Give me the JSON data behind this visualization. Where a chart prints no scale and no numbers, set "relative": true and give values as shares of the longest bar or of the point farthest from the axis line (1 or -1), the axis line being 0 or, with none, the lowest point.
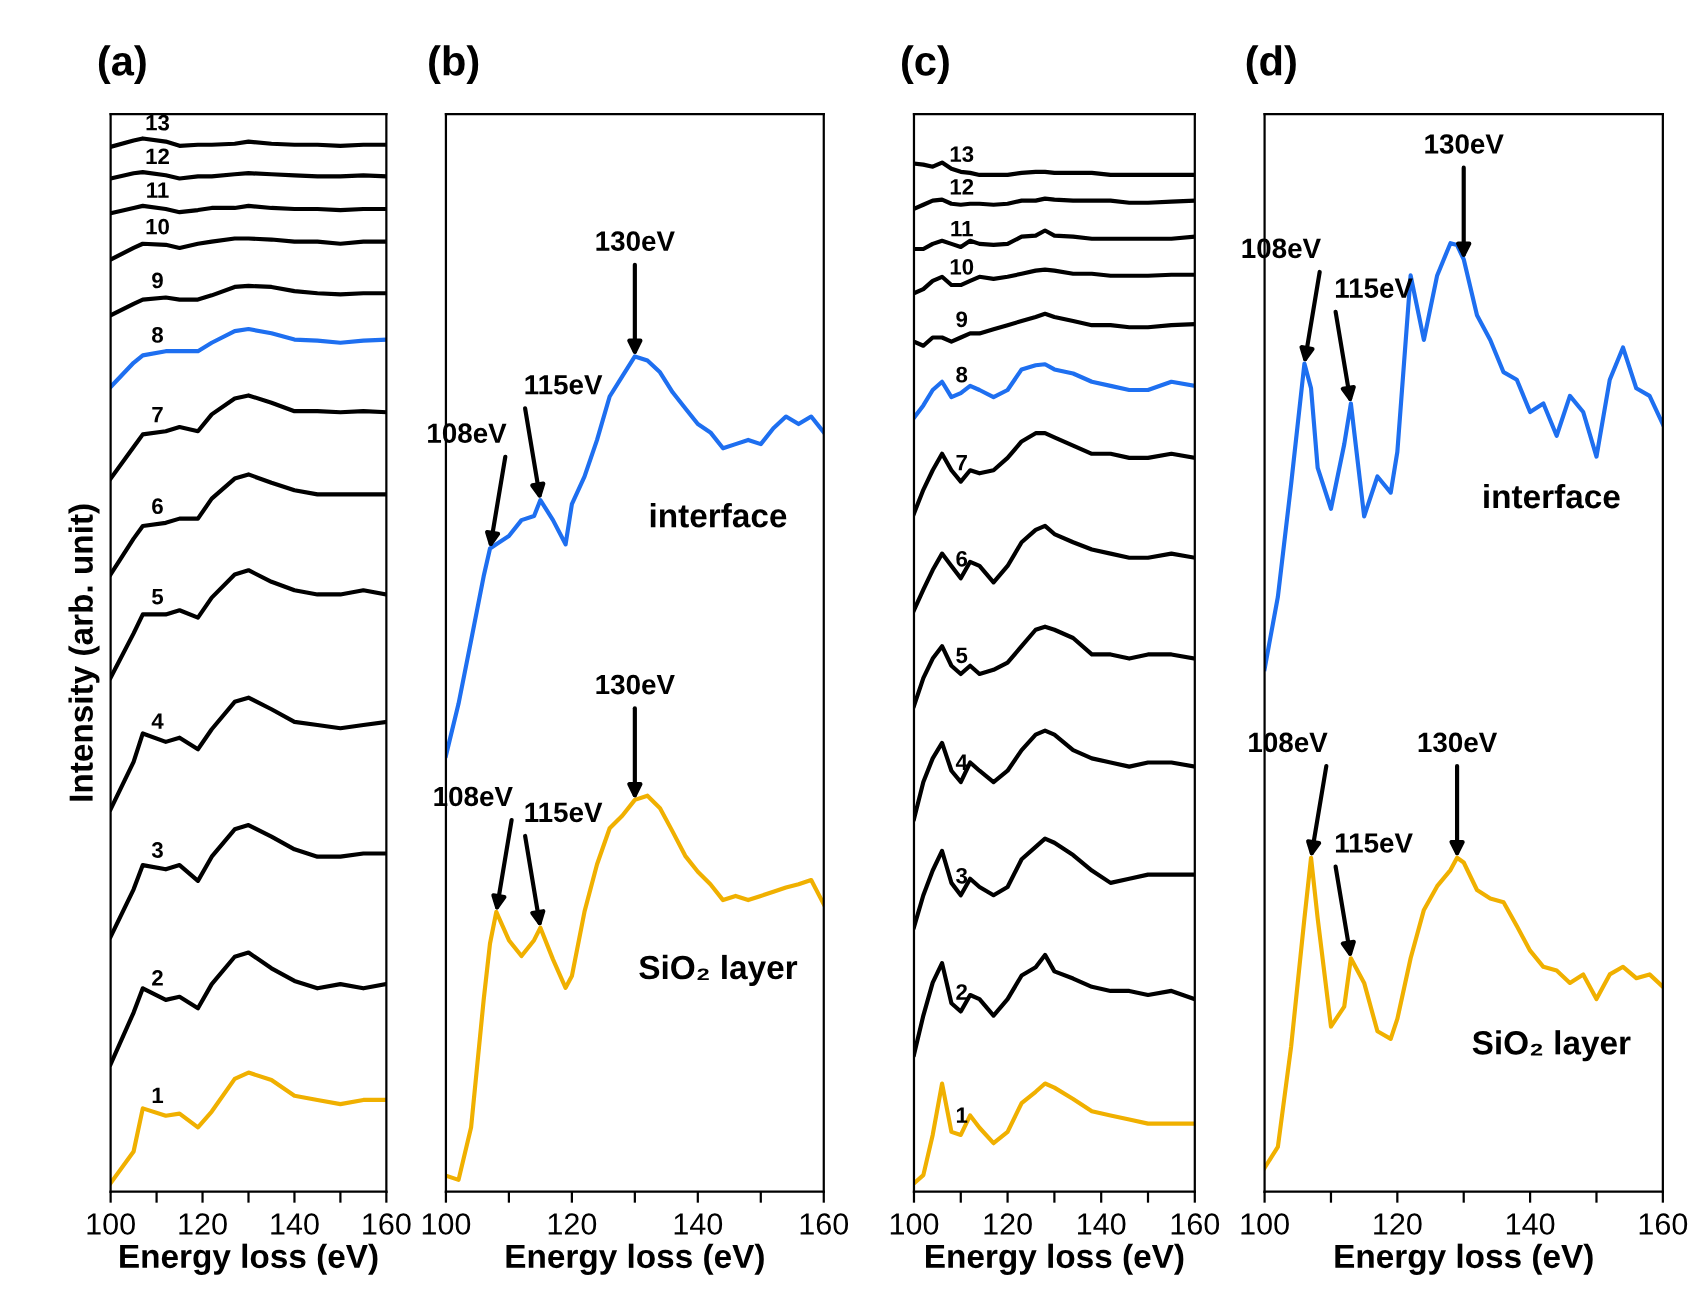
{
  "chart_data": [
    {
      "type": "line",
      "title": "(a)",
      "xlabel": "Energy loss (eV)",
      "ylabel": "Intensity (arb. unit)",
      "relative": true,
      "grid": false,
      "legend": false,
      "x": [
        100,
        105,
        107,
        112,
        115,
        119,
        122,
        127,
        130,
        135,
        140,
        145,
        150,
        155,
        160
      ],
      "xlim": [
        100,
        160
      ],
      "xticks": [
        100,
        {
          "value": 110,
          "label": null
        },
        120,
        {
          "value": 130,
          "label": null
        },
        140,
        {
          "value": 150,
          "label": null
        },
        160
      ],
      "series": [
        {
          "name": "1",
          "color": "#f0b000",
          "values": [
            0.008,
            0.038,
            0.079,
            0.072,
            0.074,
            0.061,
            0.076,
            0.107,
            0.113,
            0.106,
            0.091,
            0.087,
            0.083,
            0.087,
            0.087
          ]
        },
        {
          "name": "2",
          "color": "#000000",
          "values": [
            0.121,
            0.17,
            0.193,
            0.182,
            0.185,
            0.174,
            0.197,
            0.223,
            0.227,
            0.212,
            0.2,
            0.193,
            0.197,
            0.193,
            0.197
          ]
        },
        {
          "name": "3",
          "color": "#000000",
          "values": [
            0.242,
            0.287,
            0.31,
            0.306,
            0.31,
            0.295,
            0.318,
            0.344,
            0.348,
            0.337,
            0.325,
            0.318,
            0.318,
            0.321,
            0.321
          ]
        },
        {
          "name": "4",
          "color": "#000000",
          "values": [
            0.363,
            0.408,
            0.435,
            0.427,
            0.431,
            0.42,
            0.439,
            0.465,
            0.469,
            0.458,
            0.446,
            0.443,
            0.44,
            0.443,
            0.446
          ]
        },
        {
          "name": "5",
          "color": "#000000",
          "values": [
            0.488,
            0.53,
            0.548,
            0.548,
            0.552,
            0.545,
            0.564,
            0.586,
            0.59,
            0.579,
            0.571,
            0.567,
            0.567,
            0.571,
            0.567
          ]
        },
        {
          "name": "6",
          "color": "#000000",
          "values": [
            0.586,
            0.62,
            0.632,
            0.635,
            0.639,
            0.639,
            0.658,
            0.677,
            0.681,
            0.673,
            0.666,
            0.662,
            0.662,
            0.662,
            0.662
          ]
        },
        {
          "name": "7",
          "color": "#000000",
          "values": [
            0.677,
            0.707,
            0.719,
            0.722,
            0.726,
            0.722,
            0.738,
            0.753,
            0.756,
            0.749,
            0.741,
            0.741,
            0.74,
            0.741,
            0.74
          ]
        },
        {
          "name": "8",
          "color": "#1e6ff0",
          "values": [
            0.764,
            0.787,
            0.794,
            0.798,
            0.798,
            0.798,
            0.806,
            0.817,
            0.819,
            0.815,
            0.809,
            0.808,
            0.806,
            0.808,
            0.809
          ]
        },
        {
          "name": "9",
          "color": "#000000",
          "values": [
            0.832,
            0.843,
            0.847,
            0.849,
            0.847,
            0.847,
            0.851,
            0.859,
            0.86,
            0.859,
            0.855,
            0.853,
            0.852,
            0.853,
            0.853
          ]
        },
        {
          "name": "10",
          "color": "#000000",
          "values": [
            0.885,
            0.896,
            0.9,
            0.899,
            0.896,
            0.9,
            0.902,
            0.905,
            0.905,
            0.904,
            0.902,
            0.902,
            0.9,
            0.902,
            0.902
          ]
        },
        {
          "name": "11",
          "color": "#000000",
          "values": [
            0.929,
            0.934,
            0.936,
            0.933,
            0.93,
            0.932,
            0.934,
            0.934,
            0.936,
            0.934,
            0.933,
            0.933,
            0.932,
            0.933,
            0.933
          ]
        },
        {
          "name": "12",
          "color": "#000000",
          "values": [
            0.962,
            0.967,
            0.968,
            0.965,
            0.962,
            0.964,
            0.964,
            0.966,
            0.967,
            0.966,
            0.965,
            0.964,
            0.964,
            0.965,
            0.964
          ]
        },
        {
          "name": "13",
          "color": "#000000",
          "values": [
            0.992,
            0.998,
            1.0,
            0.997,
            0.993,
            0.994,
            0.994,
            0.995,
            0.997,
            0.995,
            0.994,
            0.994,
            0.993,
            0.994,
            0.994
          ]
        }
      ]
    },
    {
      "type": "line",
      "title": "(b)",
      "xlabel": "Energy loss (eV)",
      "relative": true,
      "grid": false,
      "legend": false,
      "x": [
        100,
        102,
        104,
        106,
        107,
        108,
        110,
        112,
        114,
        115,
        117,
        119,
        120,
        122,
        124,
        126,
        128,
        130,
        132,
        134,
        136,
        138,
        140,
        142,
        144,
        146,
        148,
        150,
        152,
        154,
        156,
        158,
        160
      ],
      "xlim": [
        100,
        160
      ],
      "xticks": [
        100,
        {
          "value": 110,
          "label": null
        },
        120,
        {
          "value": 130,
          "label": null
        },
        140,
        {
          "value": 150,
          "label": null
        },
        160
      ],
      "series": [
        {
          "name": "interface",
          "color": "#1e6ff0",
          "values": [
            0.522,
            0.584,
            0.66,
            0.737,
            0.77,
            0.775,
            0.785,
            0.804,
            0.809,
            0.828,
            0.804,
            0.775,
            0.823,
            0.856,
            0.9,
            0.952,
            0.976,
            1.0,
            0.995,
            0.981,
            0.957,
            0.938,
            0.919,
            0.909,
            0.89,
            0.895,
            0.9,
            0.895,
            0.914,
            0.928,
            0.919,
            0.928,
            0.909
          ]
        },
        {
          "name": "SiO₂ layer",
          "color": "#f0b000",
          "values": [
            0.019,
            0.014,
            0.077,
            0.23,
            0.297,
            0.335,
            0.301,
            0.282,
            0.301,
            0.316,
            0.278,
            0.244,
            0.258,
            0.335,
            0.392,
            0.435,
            0.45,
            0.469,
            0.474,
            0.459,
            0.431,
            0.402,
            0.383,
            0.368,
            0.349,
            0.354,
            0.349,
            0.354,
            0.359,
            0.364,
            0.368,
            0.373,
            0.344
          ]
        }
      ],
      "annotations": [
        {
          "text": "108eV",
          "x": 107,
          "y": 0.77
        },
        {
          "text": "115eV",
          "x": 115,
          "y": 0.828
        },
        {
          "text": "130eV",
          "x": 130,
          "y": 1.0
        },
        {
          "text": "108eV",
          "x": 108,
          "y": 0.335
        },
        {
          "text": "115eV",
          "x": 115,
          "y": 0.316
        },
        {
          "text": "130eV",
          "x": 130,
          "y": 0.469
        }
      ]
    },
    {
      "type": "line",
      "title": "(c)",
      "xlabel": "Energy loss (eV)",
      "relative": true,
      "grid": false,
      "legend": false,
      "x": [
        100,
        102,
        104,
        106,
        108,
        110,
        112,
        114,
        117,
        120,
        123,
        126,
        128,
        130,
        134,
        138,
        142,
        146,
        150,
        155,
        160
      ],
      "xlim": [
        100,
        160
      ],
      "xticks": [
        100,
        {
          "value": 110,
          "label": null
        },
        120,
        {
          "value": 130,
          "label": null
        },
        140,
        {
          "value": 150,
          "label": null
        },
        160
      ],
      "series": [
        {
          "name": "1",
          "color": "#f0b000",
          "values": [
            0.008,
            0.016,
            0.055,
            0.105,
            0.058,
            0.055,
            0.074,
            0.062,
            0.047,
            0.058,
            0.086,
            0.097,
            0.105,
            0.101,
            0.09,
            0.078,
            0.074,
            0.07,
            0.066,
            0.066,
            0.066
          ]
        },
        {
          "name": "2",
          "color": "#000000",
          "values": [
            0.133,
            0.171,
            0.203,
            0.222,
            0.183,
            0.175,
            0.191,
            0.187,
            0.171,
            0.187,
            0.21,
            0.218,
            0.23,
            0.214,
            0.207,
            0.199,
            0.195,
            0.195,
            0.191,
            0.195,
            0.187
          ]
        },
        {
          "name": "3",
          "color": "#000000",
          "values": [
            0.257,
            0.288,
            0.312,
            0.331,
            0.3,
            0.288,
            0.304,
            0.296,
            0.288,
            0.296,
            0.323,
            0.335,
            0.343,
            0.339,
            0.327,
            0.312,
            0.3,
            0.304,
            0.308,
            0.308,
            0.308
          ]
        },
        {
          "name": "4",
          "color": "#000000",
          "values": [
            0.362,
            0.398,
            0.421,
            0.436,
            0.409,
            0.398,
            0.417,
            0.409,
            0.398,
            0.409,
            0.429,
            0.444,
            0.448,
            0.444,
            0.429,
            0.421,
            0.417,
            0.413,
            0.417,
            0.417,
            0.413
          ]
        },
        {
          "name": "5",
          "color": "#000000",
          "values": [
            0.472,
            0.499,
            0.518,
            0.53,
            0.511,
            0.503,
            0.511,
            0.503,
            0.507,
            0.514,
            0.53,
            0.546,
            0.549,
            0.546,
            0.538,
            0.522,
            0.522,
            0.518,
            0.522,
            0.522,
            0.518
          ]
        },
        {
          "name": "6",
          "color": "#000000",
          "values": [
            0.565,
            0.585,
            0.604,
            0.62,
            0.608,
            0.596,
            0.612,
            0.608,
            0.592,
            0.608,
            0.631,
            0.643,
            0.647,
            0.639,
            0.631,
            0.624,
            0.62,
            0.616,
            0.616,
            0.62,
            0.616
          ]
        },
        {
          "name": "7",
          "color": "#000000",
          "values": [
            0.659,
            0.682,
            0.701,
            0.717,
            0.701,
            0.69,
            0.701,
            0.698,
            0.701,
            0.713,
            0.729,
            0.737,
            0.737,
            0.733,
            0.725,
            0.717,
            0.717,
            0.713,
            0.713,
            0.717,
            0.713
          ]
        },
        {
          "name": "8",
          "color": "#1e6ff0",
          "values": [
            0.752,
            0.764,
            0.779,
            0.787,
            0.772,
            0.776,
            0.783,
            0.779,
            0.772,
            0.779,
            0.799,
            0.803,
            0.804,
            0.799,
            0.795,
            0.787,
            0.783,
            0.779,
            0.779,
            0.787,
            0.783
          ]
        },
        {
          "name": "9",
          "color": "#000000",
          "values": [
            0.826,
            0.822,
            0.83,
            0.83,
            0.826,
            0.83,
            0.834,
            0.834,
            0.838,
            0.842,
            0.846,
            0.85,
            0.853,
            0.85,
            0.846,
            0.842,
            0.842,
            0.84,
            0.84,
            0.842,
            0.843
          ]
        },
        {
          "name": "10",
          "color": "#000000",
          "values": [
            0.873,
            0.877,
            0.885,
            0.889,
            0.881,
            0.881,
            0.885,
            0.889,
            0.887,
            0.889,
            0.892,
            0.895,
            0.896,
            0.895,
            0.892,
            0.892,
            0.89,
            0.89,
            0.89,
            0.891,
            0.891
          ]
        },
        {
          "name": "11",
          "color": "#000000",
          "values": [
            0.916,
            0.916,
            0.921,
            0.924,
            0.921,
            0.918,
            0.924,
            0.921,
            0.92,
            0.921,
            0.928,
            0.929,
            0.934,
            0.929,
            0.928,
            0.926,
            0.926,
            0.926,
            0.926,
            0.926,
            0.928
          ]
        },
        {
          "name": "12",
          "color": "#000000",
          "values": [
            0.955,
            0.959,
            0.963,
            0.964,
            0.96,
            0.959,
            0.96,
            0.96,
            0.959,
            0.96,
            0.963,
            0.963,
            0.965,
            0.964,
            0.963,
            0.963,
            0.963,
            0.961,
            0.961,
            0.962,
            0.963
          ]
        },
        {
          "name": "13",
          "color": "#000000",
          "values": [
            0.999,
            0.998,
            0.996,
            1.0,
            0.994,
            0.991,
            0.99,
            0.988,
            0.988,
            0.988,
            0.99,
            0.991,
            0.991,
            0.99,
            0.99,
            0.99,
            0.988,
            0.988,
            0.988,
            0.988,
            0.988
          ]
        }
      ]
    },
    {
      "type": "line",
      "title": "(d)",
      "xlabel": "Energy loss (eV)",
      "relative": true,
      "grid": false,
      "legend": false,
      "x": [
        100,
        102,
        104,
        106,
        107,
        108,
        110,
        112,
        113,
        115,
        117,
        119,
        120,
        122,
        124,
        126,
        128,
        129,
        130,
        132,
        134,
        136,
        138,
        140,
        142,
        144,
        146,
        148,
        150,
        152,
        154,
        156,
        158,
        160
      ],
      "xlim": [
        100,
        160
      ],
      "xticks": [
        100,
        {
          "value": 110,
          "label": null
        },
        120,
        {
          "value": 130,
          "label": null
        },
        140,
        {
          "value": 150,
          "label": null
        },
        160
      ],
      "series": [
        {
          "name": "interface",
          "color": "#1e6ff0",
          "values": [
            0.551,
            0.627,
            0.746,
            0.873,
            0.847,
            0.763,
            0.72,
            0.788,
            0.831,
            0.712,
            0.754,
            0.737,
            0.78,
            0.966,
            0.898,
            0.966,
            1.0,
            0.998,
            0.983,
            0.924,
            0.898,
            0.864,
            0.856,
            0.822,
            0.831,
            0.797,
            0.839,
            0.822,
            0.775,
            0.856,
            0.89,
            0.847,
            0.839,
            0.809
          ]
        },
        {
          "name": "SiO₂ layer",
          "color": "#f0b000",
          "values": [
            0.025,
            0.047,
            0.153,
            0.288,
            0.352,
            0.288,
            0.174,
            0.195,
            0.246,
            0.22,
            0.169,
            0.161,
            0.182,
            0.246,
            0.297,
            0.322,
            0.339,
            0.352,
            0.347,
            0.318,
            0.309,
            0.305,
            0.28,
            0.254,
            0.237,
            0.233,
            0.22,
            0.229,
            0.203,
            0.229,
            0.237,
            0.225,
            0.229,
            0.216
          ]
        }
      ],
      "annotations": [
        {
          "text": "108eV",
          "x": 106,
          "y": 0.873
        },
        {
          "text": "115eV",
          "x": 113,
          "y": 0.831
        },
        {
          "text": "130eV",
          "x": 130,
          "y": 0.983
        },
        {
          "text": "108eV",
          "x": 107,
          "y": 0.352
        },
        {
          "text": "115eV",
          "x": 113,
          "y": 0.246
        },
        {
          "text": "130eV",
          "x": 129,
          "y": 0.352
        }
      ]
    }
  ]
}
